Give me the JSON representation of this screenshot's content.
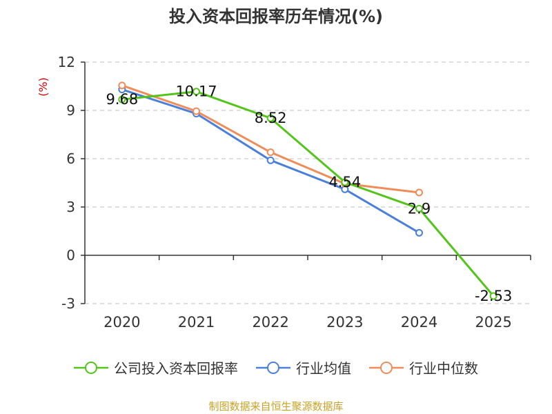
{
  "chart_data": {
    "type": "line",
    "title": "投入资本回报率历年情况(%)",
    "ylabel": "(%)",
    "xlabel": "",
    "categories": [
      "2020",
      "2021",
      "2022",
      "2023",
      "2024",
      "2025"
    ],
    "ylim": [
      -3,
      12
    ],
    "yticks": [
      -3,
      0,
      3,
      6,
      9,
      12
    ],
    "grid": true,
    "legend_position": "bottom",
    "series": [
      {
        "name": "公司投入资本回报率",
        "color": "#52c41a",
        "values": [
          9.68,
          10.17,
          8.52,
          4.54,
          2.9,
          -2.53
        ],
        "labels": [
          "9.68",
          "10.17",
          "8.52",
          "4.54",
          "2.9",
          "-2.53"
        ]
      },
      {
        "name": "行业均值",
        "color": "#4a7fdc",
        "values": [
          10.3,
          8.8,
          5.9,
          4.1,
          1.4,
          null
        ]
      },
      {
        "name": "行业中位数",
        "color": "#f08c5a",
        "values": [
          10.55,
          8.95,
          6.4,
          4.45,
          3.9,
          null
        ]
      }
    ]
  },
  "source": "制图数据来自恒生聚源数据库",
  "colors": {
    "title": "#333333",
    "ylabel": "#d40000",
    "source": "#c9a227",
    "grid": "#cccccc",
    "axis": "#333333"
  }
}
